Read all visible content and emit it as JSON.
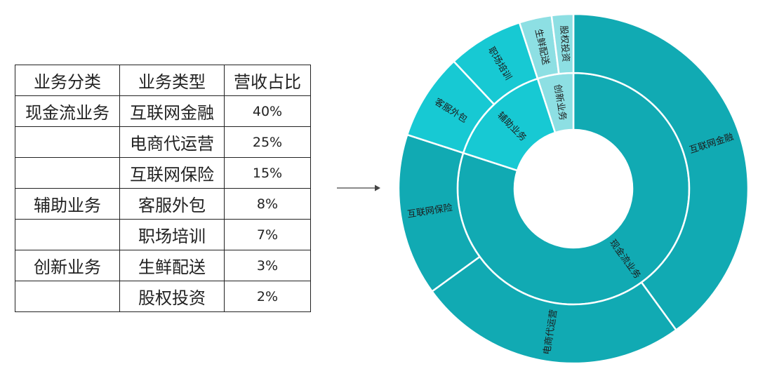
{
  "table": {
    "headers": [
      "业务分类",
      "业务类型",
      "营收占比"
    ],
    "rows": [
      {
        "category": "现金流业务",
        "type": "互联网金融",
        "share": "40%"
      },
      {
        "category": "",
        "type": "电商代运营",
        "share": "25%"
      },
      {
        "category": "",
        "type": "互联网保险",
        "share": "15%"
      },
      {
        "category": "辅助业务",
        "type": "客服外包",
        "share": "8%"
      },
      {
        "category": "",
        "type": "职场培训",
        "share": "7%"
      },
      {
        "category": "创新业务",
        "type": "生鲜配送",
        "share": "3%"
      },
      {
        "category": "",
        "type": "股权投资",
        "share": "2%"
      }
    ]
  },
  "chart_data": {
    "type": "sunburst",
    "unit": "%",
    "inner": [
      {
        "name": "现金流业务",
        "value": 80,
        "color": "#11aab3"
      },
      {
        "name": "辅助业务",
        "value": 15,
        "color": "#17c9d3"
      },
      {
        "name": "创新业务",
        "value": 5,
        "color": "#8ddfe3"
      }
    ],
    "outer": [
      {
        "name": "互联网金融",
        "parent": "现金流业务",
        "value": 40,
        "color": "#11aab3"
      },
      {
        "name": "电商代运营",
        "parent": "现金流业务",
        "value": 25,
        "color": "#11aab3"
      },
      {
        "name": "互联网保险",
        "parent": "现金流业务",
        "value": 15,
        "color": "#11aab3"
      },
      {
        "name": "客服外包",
        "parent": "辅助业务",
        "value": 8,
        "color": "#17c9d3"
      },
      {
        "name": "职场培训",
        "parent": "辅助业务",
        "value": 7,
        "color": "#17c9d3"
      },
      {
        "name": "生鲜配送",
        "parent": "创新业务",
        "value": 3,
        "color": "#8ddfe3"
      },
      {
        "name": "股权投资",
        "parent": "创新业务",
        "value": 2,
        "color": "#8ddfe3"
      }
    ]
  }
}
